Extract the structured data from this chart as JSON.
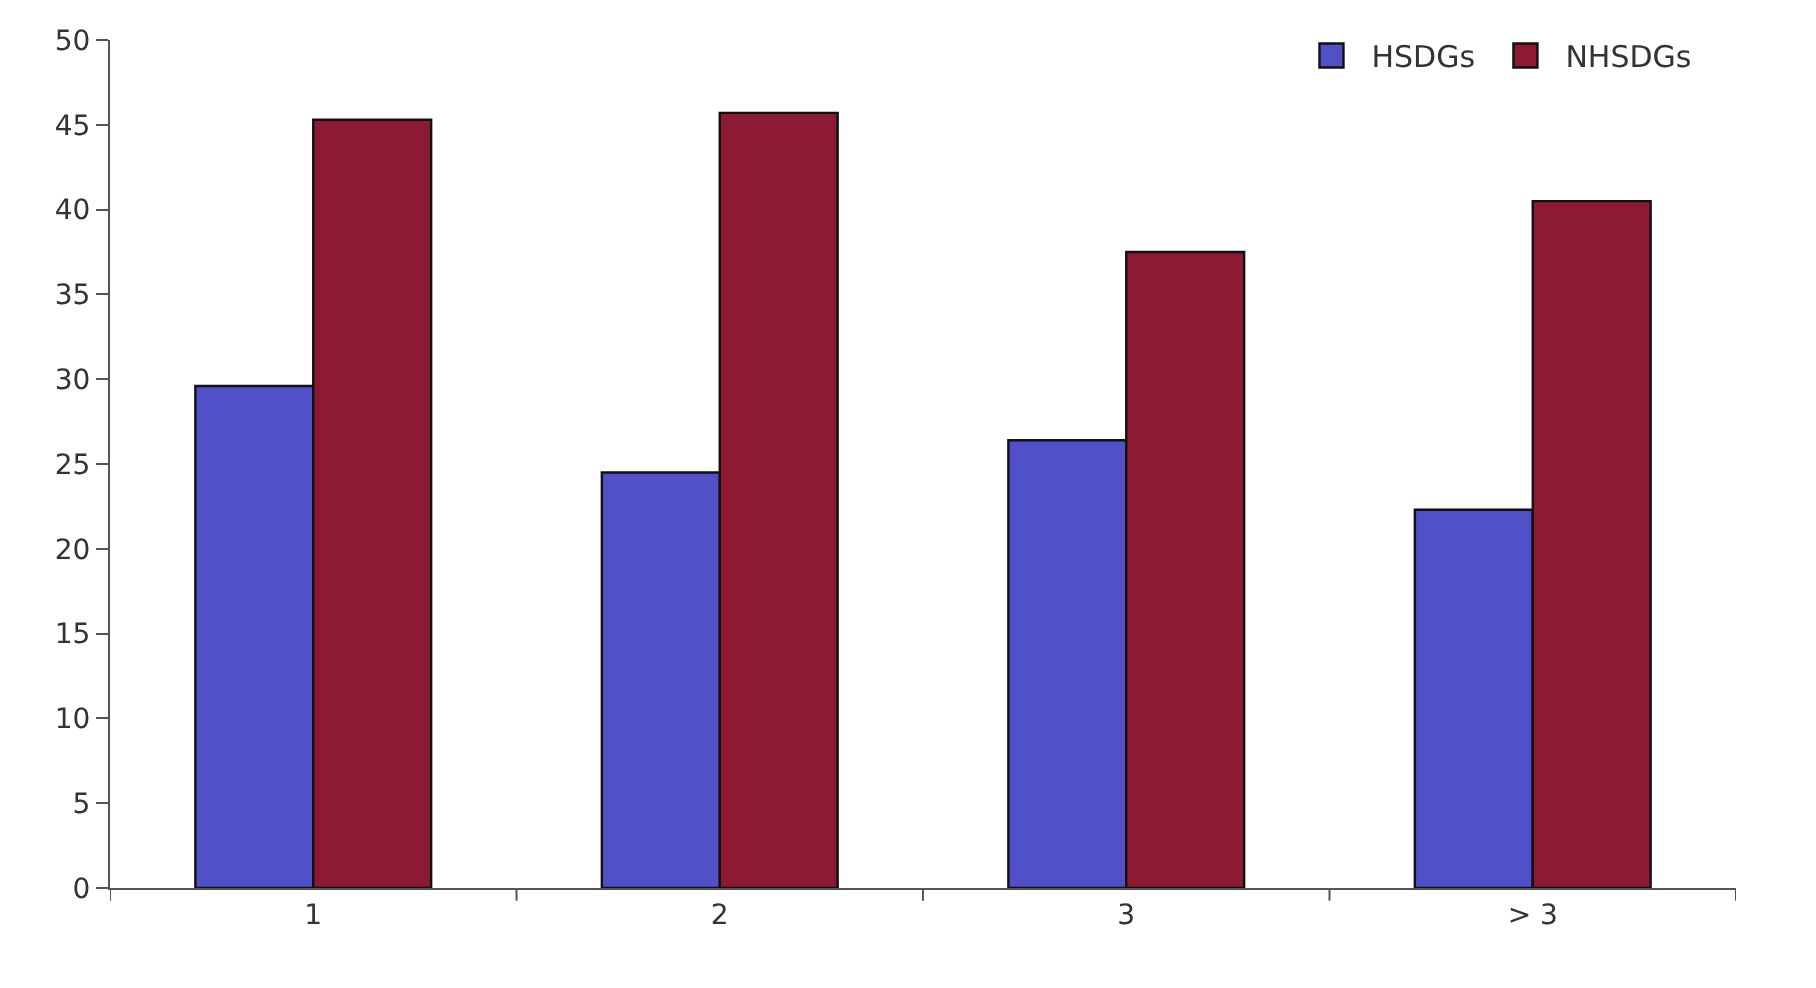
{
  "chart_data": {
    "type": "bar",
    "categories": [
      "1",
      "2",
      "3",
      "> 3"
    ],
    "series": [
      {
        "name": "HSDGs",
        "color": "#5050c8",
        "values": [
          29.6,
          24.5,
          26.4,
          22.3
        ]
      },
      {
        "name": "NHSDGs",
        "color": "#8b1a32",
        "values": [
          45.3,
          45.7,
          37.5,
          40.5
        ]
      }
    ],
    "ylim": [
      0,
      50
    ],
    "yticks": [
      0,
      5,
      10,
      15,
      20,
      25,
      30,
      35,
      40,
      45,
      50
    ],
    "legend": "top right"
  }
}
